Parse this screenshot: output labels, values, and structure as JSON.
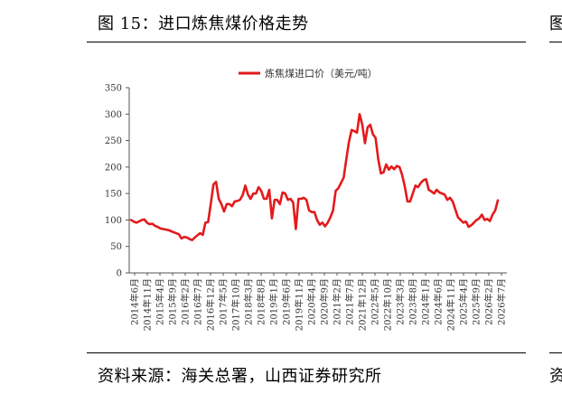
{
  "figure": {
    "title": "图 15：进口炼焦煤价格走势",
    "source": "资料来源：海关总署，山西证券研究所",
    "edge_glyph_top": "图",
    "edge_glyph_bottom": "资"
  },
  "chart_data": {
    "type": "line",
    "title": "",
    "xlabel": "",
    "ylabel": "",
    "ylim": [
      0,
      350
    ],
    "yticks": [
      0,
      50,
      100,
      150,
      200,
      250,
      300,
      350
    ],
    "grid": false,
    "legend_position": "top-center",
    "x_tick_labels": [
      "2014年6月",
      "2014年11月",
      "2015年4月",
      "2015年9月",
      "2016年2月",
      "2016年7月",
      "2016年12月",
      "2017年5月",
      "2017年10月",
      "2018年3月",
      "2018年8月",
      "2019年1月",
      "2019年6月",
      "2019年11月",
      "2020年4月",
      "2020年9月",
      "2021年2月",
      "2021年7月",
      "2021年12月",
      "2022年5月",
      "2022年10月",
      "2023年3月",
      "2023年8月",
      "2024年1月",
      "2024年6月",
      "2024年11月",
      "2025年4月",
      "2025年9月",
      "2026年2月",
      "2026年7月"
    ],
    "series": [
      {
        "name": "炼焦煤进口价（美元/吨）",
        "color": "#e31a1c",
        "values": [
          100,
          97,
          95,
          97,
          100,
          101,
          95,
          92,
          93,
          89,
          87,
          84,
          83,
          82,
          81,
          79,
          77,
          75,
          73,
          65,
          68,
          67,
          64,
          62,
          67,
          71,
          75,
          72,
          95,
          96,
          130,
          167,
          172,
          140,
          130,
          116,
          130,
          130,
          126,
          135,
          136,
          138,
          147,
          165,
          148,
          140,
          150,
          150,
          162,
          155,
          140,
          140,
          157,
          103,
          138,
          138,
          130,
          152,
          150,
          138,
          140,
          133,
          83,
          140,
          140,
          142,
          138,
          118,
          115,
          115,
          100,
          91,
          95,
          88,
          95,
          105,
          118,
          155,
          160,
          170,
          180,
          215,
          248,
          270,
          268,
          265,
          300,
          280,
          245,
          275,
          280,
          262,
          255,
          215,
          188,
          190,
          205,
          195,
          201,
          196,
          202,
          200,
          185,
          163,
          135,
          135,
          150,
          165,
          162,
          170,
          175,
          177,
          157,
          154,
          150,
          157,
          152,
          150,
          148,
          138,
          142,
          135,
          120,
          105,
          100,
          95,
          97,
          87,
          90,
          95,
          100,
          103,
          110,
          100,
          102,
          98,
          110,
          118,
          137
        ]
      }
    ]
  }
}
